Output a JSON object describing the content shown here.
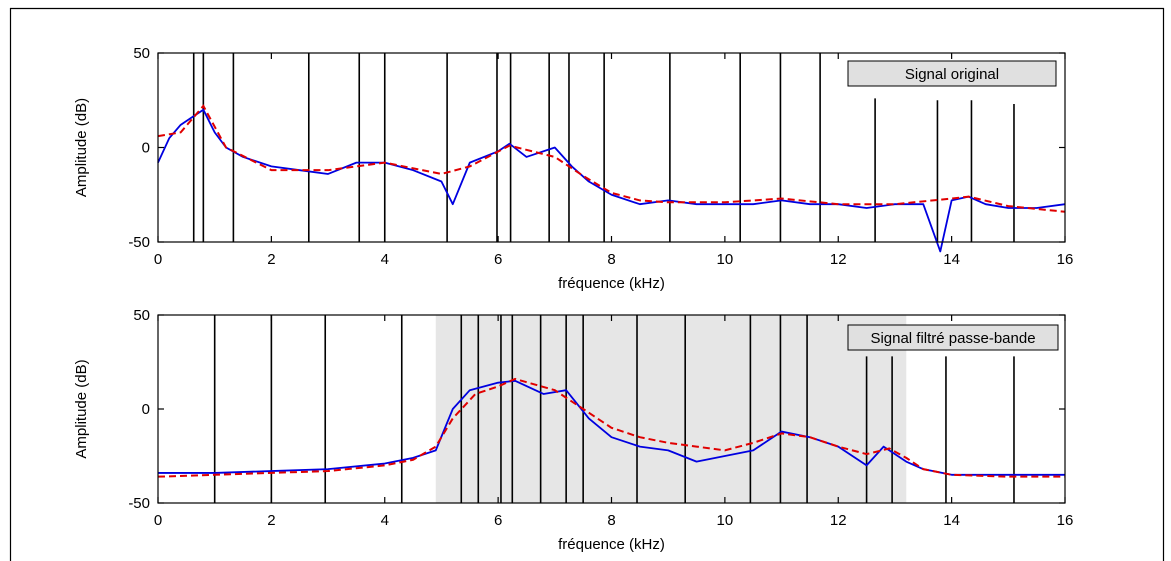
{
  "chart_data": [
    {
      "type": "line",
      "title": "",
      "legend": "Signal original",
      "legend_position": "top-right",
      "xlabel": "fréquence (kHz)",
      "ylabel": "Amplitude (dB)",
      "xlim": [
        0,
        16
      ],
      "ylim": [
        -50,
        50
      ],
      "xticks": [
        "0",
        "2",
        "4",
        "6",
        "8",
        "10",
        "12",
        "14",
        "16"
      ],
      "yticks": [
        "-50",
        "0",
        "50"
      ],
      "grid": false,
      "colors": {
        "spectrum": "#0000e0",
        "envelope": "#e00000",
        "markers": "#000000",
        "legend_bg": "#e0e0e0"
      },
      "spectrum": {
        "x": [
          0,
          0.2,
          0.4,
          0.6,
          0.8,
          1.0,
          1.2,
          1.5,
          2.0,
          2.5,
          3.0,
          3.5,
          4.0,
          4.5,
          5.0,
          5.2,
          5.5,
          6.0,
          6.2,
          6.5,
          7.0,
          7.3,
          7.6,
          8.0,
          8.5,
          9.0,
          9.5,
          10.0,
          10.5,
          11.0,
          11.5,
          12.0,
          12.5,
          13.0,
          13.5,
          13.8,
          14.0,
          14.3,
          14.6,
          15.0,
          15.5,
          16.0
        ],
        "y": [
          -8,
          5,
          12,
          16,
          20,
          8,
          0,
          -5,
          -10,
          -12,
          -14,
          -8,
          -8,
          -12,
          -18,
          -30,
          -8,
          -2,
          2,
          -5,
          0,
          -10,
          -18,
          -25,
          -30,
          -28,
          -30,
          -30,
          -30,
          -28,
          -30,
          -30,
          -32,
          -30,
          -30,
          -55,
          -28,
          -26,
          -30,
          -32,
          -32,
          -30
        ]
      },
      "envelope": {
        "x": [
          0,
          0.4,
          0.8,
          1.2,
          2.0,
          3.0,
          4.0,
          5.0,
          5.5,
          6.2,
          7.0,
          7.5,
          8.0,
          8.5,
          9.0,
          10.0,
          11.0,
          12.0,
          13.0,
          14.0,
          14.3,
          15.0,
          16.0
        ],
        "y": [
          6,
          8,
          22,
          0,
          -12,
          -12,
          -8,
          -14,
          -10,
          1,
          -5,
          -15,
          -24,
          -28,
          -29,
          -29,
          -27,
          -30,
          -30,
          -27,
          -26,
          -31,
          -34
        ]
      },
      "markers_x": [
        0.63,
        0.8,
        1.33,
        2.66,
        3.55,
        4.0,
        5.1,
        5.98,
        6.22,
        6.9,
        7.25,
        7.87,
        9.03,
        10.27,
        10.98,
        11.68,
        12.65,
        13.75,
        14.35,
        15.1
      ],
      "markers_top": [
        50,
        50,
        50,
        50,
        50,
        50,
        50,
        50,
        50,
        50,
        50,
        50,
        50,
        50,
        50,
        50,
        26,
        25,
        25,
        23
      ]
    },
    {
      "type": "line",
      "title": "",
      "legend": "Signal filtré passe-bande",
      "legend_position": "top-right",
      "xlabel": "fréquence (kHz)",
      "ylabel": "Amplitude (dB)",
      "xlim": [
        0,
        16
      ],
      "ylim": [
        -50,
        50
      ],
      "xticks": [
        "0",
        "2",
        "4",
        "6",
        "8",
        "10",
        "12",
        "14",
        "16"
      ],
      "yticks": [
        "-50",
        "0",
        "50"
      ],
      "grid": false,
      "passband": [
        4.9,
        13.2
      ],
      "colors": {
        "spectrum": "#0000e0",
        "envelope": "#e00000",
        "markers": "#000000",
        "legend_bg": "#e0e0e0",
        "passband": "#e6e6e6"
      },
      "spectrum": {
        "x": [
          0,
          1,
          2,
          3,
          4,
          4.5,
          4.9,
          5.2,
          5.5,
          6.0,
          6.3,
          6.8,
          7.2,
          7.6,
          8.0,
          8.5,
          9.0,
          9.5,
          10.0,
          10.5,
          11.0,
          11.5,
          12.0,
          12.5,
          12.8,
          13.2,
          13.5,
          14.0,
          15.0,
          16.0
        ],
        "y": [
          -34,
          -34,
          -33,
          -32,
          -29,
          -26,
          -22,
          0,
          10,
          14,
          15,
          8,
          10,
          -5,
          -15,
          -20,
          -22,
          -28,
          -25,
          -22,
          -12,
          -15,
          -20,
          -30,
          -20,
          -28,
          -32,
          -35,
          -35,
          -35
        ]
      },
      "envelope": {
        "x": [
          0,
          1,
          2,
          3,
          4,
          4.5,
          4.9,
          5.2,
          5.6,
          6.0,
          6.3,
          7.0,
          7.5,
          8.0,
          8.5,
          9.0,
          9.5,
          10.0,
          10.5,
          11.0,
          11.5,
          12.0,
          12.5,
          12.9,
          13.2,
          13.5,
          14.0,
          15.0,
          16.0
        ],
        "y": [
          -36,
          -35,
          -34,
          -33,
          -30,
          -27,
          -20,
          -5,
          8,
          12,
          16,
          10,
          0,
          -10,
          -15,
          -18,
          -20,
          -22,
          -18,
          -13,
          -15,
          -20,
          -24,
          -21,
          -26,
          -32,
          -35,
          -36,
          -36
        ]
      },
      "markers_x": [
        1.0,
        2.0,
        2.95,
        4.3,
        5.35,
        5.65,
        6.05,
        6.25,
        6.75,
        7.2,
        7.5,
        8.45,
        9.3,
        10.45,
        10.98,
        11.45,
        12.5,
        12.95,
        13.9,
        15.1
      ],
      "markers_top": [
        50,
        50,
        50,
        50,
        50,
        50,
        50,
        50,
        50,
        50,
        50,
        50,
        50,
        50,
        50,
        50,
        28,
        28,
        28,
        28
      ]
    }
  ]
}
